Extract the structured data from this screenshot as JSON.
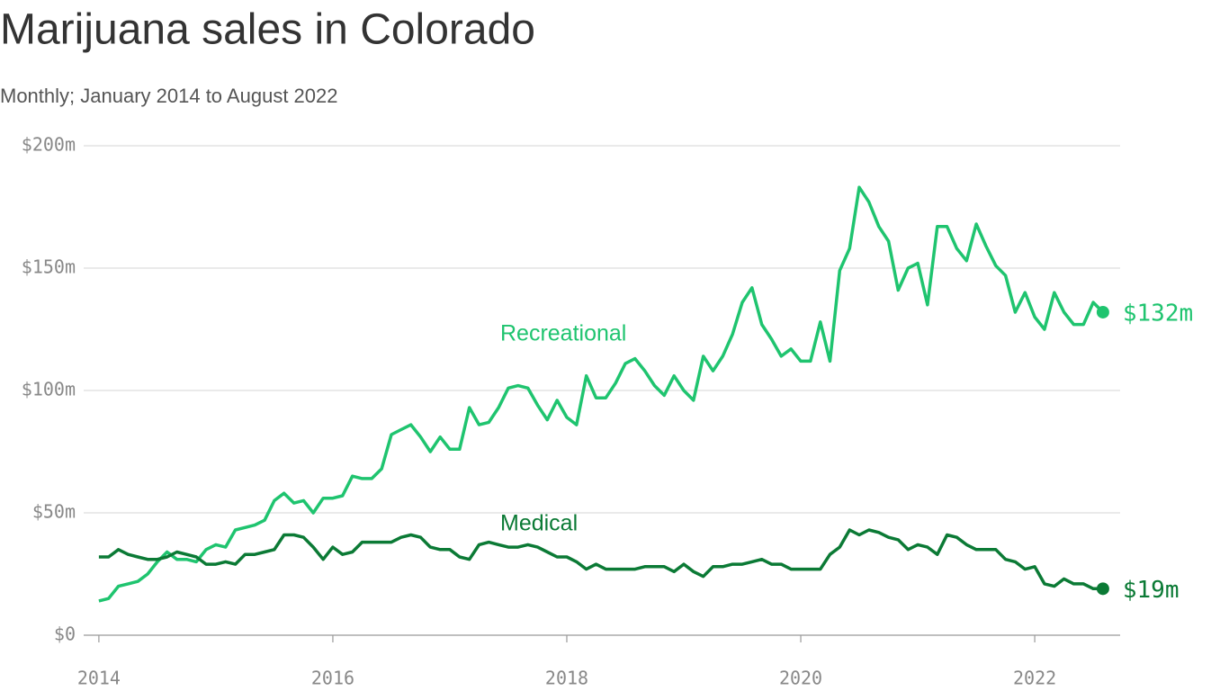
{
  "chart_data": {
    "type": "line",
    "title": "Marijuana sales in Colorado",
    "subtitle": "Monthly; January 2014 to August 2022",
    "x": [
      2014,
      2014.083,
      2014.167,
      2014.25,
      2014.333,
      2014.417,
      2014.5,
      2014.583,
      2014.667,
      2014.75,
      2014.833,
      2014.917,
      2015,
      2015.083,
      2015.167,
      2015.25,
      2015.333,
      2015.417,
      2015.5,
      2015.583,
      2015.667,
      2015.75,
      2015.833,
      2015.917,
      2016,
      2016.083,
      2016.167,
      2016.25,
      2016.333,
      2016.417,
      2016.5,
      2016.583,
      2016.667,
      2016.75,
      2016.833,
      2016.917,
      2017,
      2017.083,
      2017.167,
      2017.25,
      2017.333,
      2017.417,
      2017.5,
      2017.583,
      2017.667,
      2017.75,
      2017.833,
      2017.917,
      2018,
      2018.083,
      2018.167,
      2018.25,
      2018.333,
      2018.417,
      2018.5,
      2018.583,
      2018.667,
      2018.75,
      2018.833,
      2018.917,
      2019,
      2019.083,
      2019.167,
      2019.25,
      2019.333,
      2019.417,
      2019.5,
      2019.583,
      2019.667,
      2019.75,
      2019.833,
      2019.917,
      2020,
      2020.083,
      2020.167,
      2020.25,
      2020.333,
      2020.417,
      2020.5,
      2020.583,
      2020.667,
      2020.75,
      2020.833,
      2020.917,
      2021,
      2021.083,
      2021.167,
      2021.25,
      2021.333,
      2021.417,
      2021.5,
      2021.583,
      2021.667,
      2021.75,
      2021.833,
      2021.917,
      2022,
      2022.083,
      2022.167,
      2022.25,
      2022.333,
      2022.417,
      2022.5,
      2022.583
    ],
    "series": [
      {
        "name": "Recreational",
        "color": "#1fc46f",
        "end_label": "$132m",
        "values": [
          14,
          15,
          20,
          21,
          22,
          25,
          30,
          34,
          31,
          31,
          30,
          35,
          37,
          36,
          43,
          44,
          45,
          47,
          55,
          58,
          54,
          55,
          50,
          56,
          56,
          57,
          65,
          64,
          64,
          68,
          82,
          84,
          86,
          81,
          75,
          81,
          76,
          76,
          93,
          86,
          87,
          93,
          101,
          102,
          101,
          94,
          88,
          96,
          89,
          86,
          106,
          97,
          97,
          103,
          111,
          113,
          108,
          102,
          98,
          106,
          100,
          96,
          114,
          108,
          114,
          123,
          136,
          142,
          127,
          121,
          114,
          117,
          112,
          112,
          128,
          112,
          149,
          158,
          183,
          177,
          167,
          161,
          141,
          150,
          152,
          135,
          167,
          167,
          158,
          153,
          168,
          159,
          151,
          147,
          132,
          140,
          130,
          125,
          140,
          132,
          127,
          127,
          136,
          132
        ]
      },
      {
        "name": "Medical",
        "color": "#0b7a35",
        "end_label": "$19m",
        "values": [
          32,
          32,
          35,
          33,
          32,
          31,
          31,
          32,
          34,
          33,
          32,
          29,
          29,
          30,
          29,
          33,
          33,
          34,
          35,
          41,
          41,
          40,
          36,
          31,
          36,
          33,
          34,
          38,
          38,
          38,
          38,
          40,
          41,
          40,
          36,
          35,
          35,
          32,
          31,
          37,
          38,
          37,
          36,
          36,
          37,
          36,
          34,
          32,
          32,
          30,
          27,
          29,
          27,
          27,
          27,
          27,
          28,
          28,
          28,
          26,
          29,
          26,
          24,
          28,
          28,
          29,
          29,
          30,
          31,
          29,
          29,
          27,
          27,
          27,
          27,
          33,
          36,
          43,
          41,
          43,
          42,
          40,
          39,
          35,
          37,
          36,
          33,
          41,
          40,
          37,
          35,
          35,
          35,
          31,
          30,
          27,
          28,
          21,
          20,
          23,
          21,
          21,
          19,
          19
        ]
      }
    ],
    "xlim": [
      2013.87,
      2022.73
    ],
    "xticks": [
      2014,
      2016,
      2018,
      2020,
      2022
    ],
    "ylim": [
      0,
      200
    ],
    "yticks": [
      {
        "value": 0,
        "label": "$0"
      },
      {
        "value": 50,
        "label": "$50m"
      },
      {
        "value": 100,
        "label": "$100m"
      },
      {
        "value": 150,
        "label": "$150m"
      },
      {
        "value": 200,
        "label": "$200m"
      }
    ],
    "grid": true
  }
}
